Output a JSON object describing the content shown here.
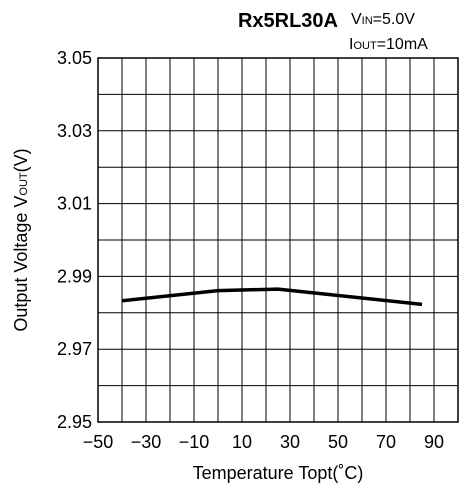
{
  "chart_data": {
    "type": "line",
    "title": "Rx5RL30A",
    "conditions": [
      {
        "main": "V",
        "sub": "IN",
        "rest": "=5.0V"
      },
      {
        "main": "I",
        "sub": "OUT",
        "rest": "=10mA"
      }
    ],
    "xlabel": "Temperature Topt(˚C)",
    "ylabel": {
      "main": "Output Voltage V",
      "sub": "OUT",
      "rest": "(V)"
    },
    "xlim": [
      -50,
      100
    ],
    "ylim": [
      2.95,
      3.05
    ],
    "x_grid_step": 10,
    "y_grid_step": 0.01,
    "x_tick_labels": [
      "−50",
      "−30",
      "−10",
      "10",
      "30",
      "50",
      "70",
      "90"
    ],
    "x_tick_values": [
      -50,
      -30,
      -10,
      10,
      30,
      50,
      70,
      90
    ],
    "y_tick_labels": [
      "3.05",
      "3.03",
      "3.01",
      "2.99",
      "2.97",
      "2.95"
    ],
    "y_tick_values": [
      3.05,
      3.03,
      3.01,
      2.99,
      2.97,
      2.95
    ],
    "grid": true,
    "series": [
      {
        "x": [
          -40,
          0,
          25,
          85
        ],
        "y": [
          2.9833,
          2.9861,
          2.9865,
          2.9823
        ],
        "color": "#000000"
      }
    ]
  }
}
